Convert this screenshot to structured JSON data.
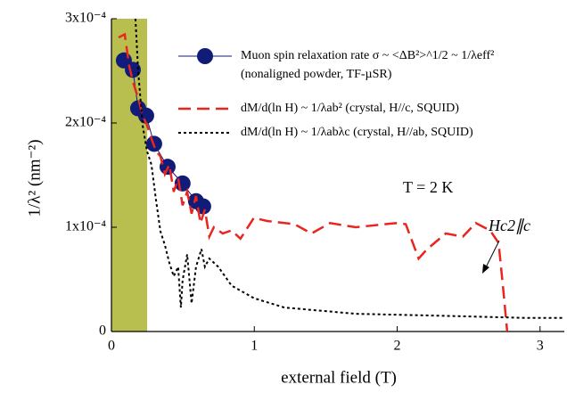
{
  "chart_data": {
    "type": "line",
    "x_label": "external field (T)",
    "y_label": "1/λ² (nm⁻²)",
    "xlim": [
      0,
      3.17
    ],
    "xticks": [
      0,
      1,
      2,
      3
    ],
    "ylim": [
      0,
      0.0003
    ],
    "yticks": [
      0,
      {
        "value": 0.0001,
        "label": "1x10⁻⁴"
      },
      {
        "value": 0.0002,
        "label": "2x10⁻⁴"
      },
      {
        "value": 0.0003,
        "label": "3x10⁻⁴"
      }
    ],
    "shaded_region": [
      0,
      0.25
    ],
    "shaded_color": "#b9bf4f",
    "legend": "upper-right",
    "annotations": [
      "T = 2 K",
      "Hc2∥c"
    ],
    "series": [
      {
        "name": "Muon spin relaxation rate σ ~ <ΔB²>^1/2 ~ 1/λeff²",
        "note": "(nonaligned powder, TF-µSR)",
        "style": "markers-line",
        "color": "#111b78",
        "x": [
          0.087,
          0.15,
          0.187,
          0.243,
          0.299,
          0.393,
          0.498,
          0.592,
          0.642
        ],
        "values": [
          0.00026,
          0.000251,
          0.000214,
          0.000207,
          0.00018,
          0.000158,
          0.000142,
          0.000125,
          0.00012
        ]
      },
      {
        "name": "dM/d(ln H) ~ 1/λab² (crystal, H//c, SQUID)",
        "style": "dashed",
        "color": "#e8251f",
        "x": [
          0.05,
          0.093,
          0.125,
          0.156,
          0.187,
          0.218,
          0.249,
          0.28,
          0.312,
          0.343,
          0.374,
          0.405,
          0.436,
          0.467,
          0.498,
          0.53,
          0.561,
          0.592,
          0.623,
          0.654,
          0.685,
          0.717,
          0.779,
          0.841,
          0.903,
          0.997,
          1.09,
          1.28,
          1.4,
          1.53,
          1.71,
          1.99,
          2.06,
          2.15,
          2.21,
          2.34,
          2.46,
          2.55,
          2.65,
          2.71,
          2.74,
          2.77
        ],
        "values": [
          0.000282,
          0.000285,
          0.000254,
          0.000237,
          0.000224,
          0.000207,
          0.000198,
          0.000185,
          0.000173,
          0.000168,
          0.000151,
          0.00016,
          0.000134,
          0.000147,
          0.000121,
          0.000134,
          0.000113,
          0.00013,
          0.000104,
          0.000117,
          9.1e-05,
          0.0001,
          9.4e-05,
          9.7e-05,
          8.9e-05,
          0.000109,
          0.000106,
          0.000103,
          9.4e-05,
          0.000104,
          0.0001,
          0.000104,
          0.000103,
          7e-05,
          7.9e-05,
          9.4e-05,
          9.1e-05,
          0.000104,
          9.7e-05,
          8.5e-05,
          4.4e-05,
          0
        ]
      },
      {
        "name": "dM/d(ln H) ~ 1/λabλc (crystal, H//ab, SQUID)",
        "style": "dotted",
        "color": "#000000",
        "x": [
          0.168,
          0.187,
          0.218,
          0.249,
          0.28,
          0.312,
          0.343,
          0.374,
          0.405,
          0.436,
          0.467,
          0.486,
          0.498,
          0.53,
          0.561,
          0.592,
          0.63,
          0.654,
          0.685,
          0.748,
          0.841,
          0.997,
          1.21,
          1.71,
          2.34,
          2.91,
          3.17
        ],
        "values": [
          0.0003,
          0.00025,
          0.000198,
          0.000173,
          0.00016,
          0.000126,
          9.6e-05,
          8.3e-05,
          6.6e-05,
          5.3e-05,
          6.2e-05,
          2.3e-05,
          4.9e-05,
          7.4e-05,
          2.7e-05,
          6.2e-05,
          7.9e-05,
          6.2e-05,
          7e-05,
          6.2e-05,
          4.4e-05,
          3.2e-05,
          2.3e-05,
          1.7e-05,
          1.5e-05,
          1.3e-05,
          1.3e-05
        ]
      }
    ]
  }
}
